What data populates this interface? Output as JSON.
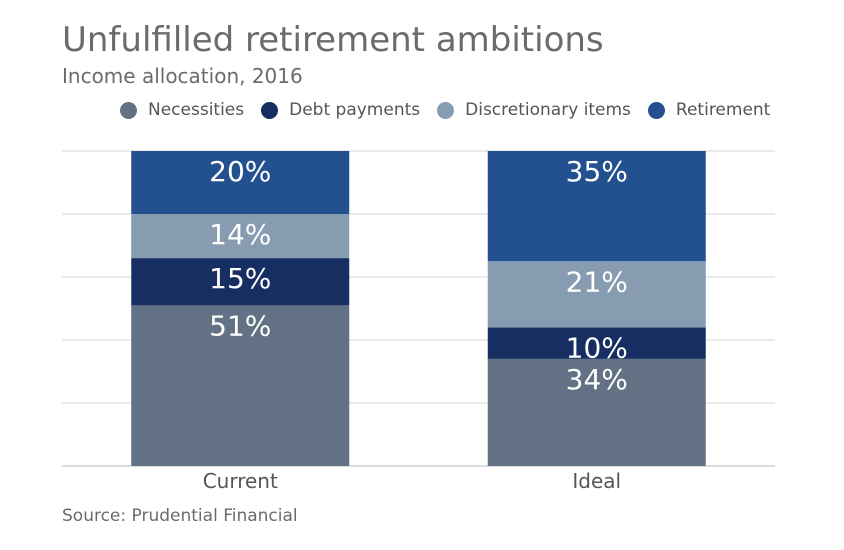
{
  "chart_data": {
    "type": "bar",
    "stacked": true,
    "title": "Unfulfilled retirement ambitions",
    "subtitle": "Income allocation, 2016",
    "source": "Source: Prudential Financial",
    "categories": [
      "Current",
      "Ideal"
    ],
    "ylim": [
      0,
      100
    ],
    "grid": true,
    "legend_position": "top",
    "series": [
      {
        "name": "Necessities",
        "color": "#627183",
        "values": [
          51,
          34
        ],
        "labels": [
          "51%",
          "34%"
        ]
      },
      {
        "name": "Debt payments",
        "color": "#172e63",
        "values": [
          15,
          10
        ],
        "labels": [
          "15%",
          "10%"
        ]
      },
      {
        "name": "Discretionary items",
        "color": "#879cb0",
        "values": [
          14,
          21
        ],
        "labels": [
          "14%",
          "21%"
        ]
      },
      {
        "name": "Retirement",
        "color": "#23518f",
        "values": [
          20,
          35
        ],
        "labels": [
          "20%",
          "35%"
        ]
      }
    ]
  }
}
